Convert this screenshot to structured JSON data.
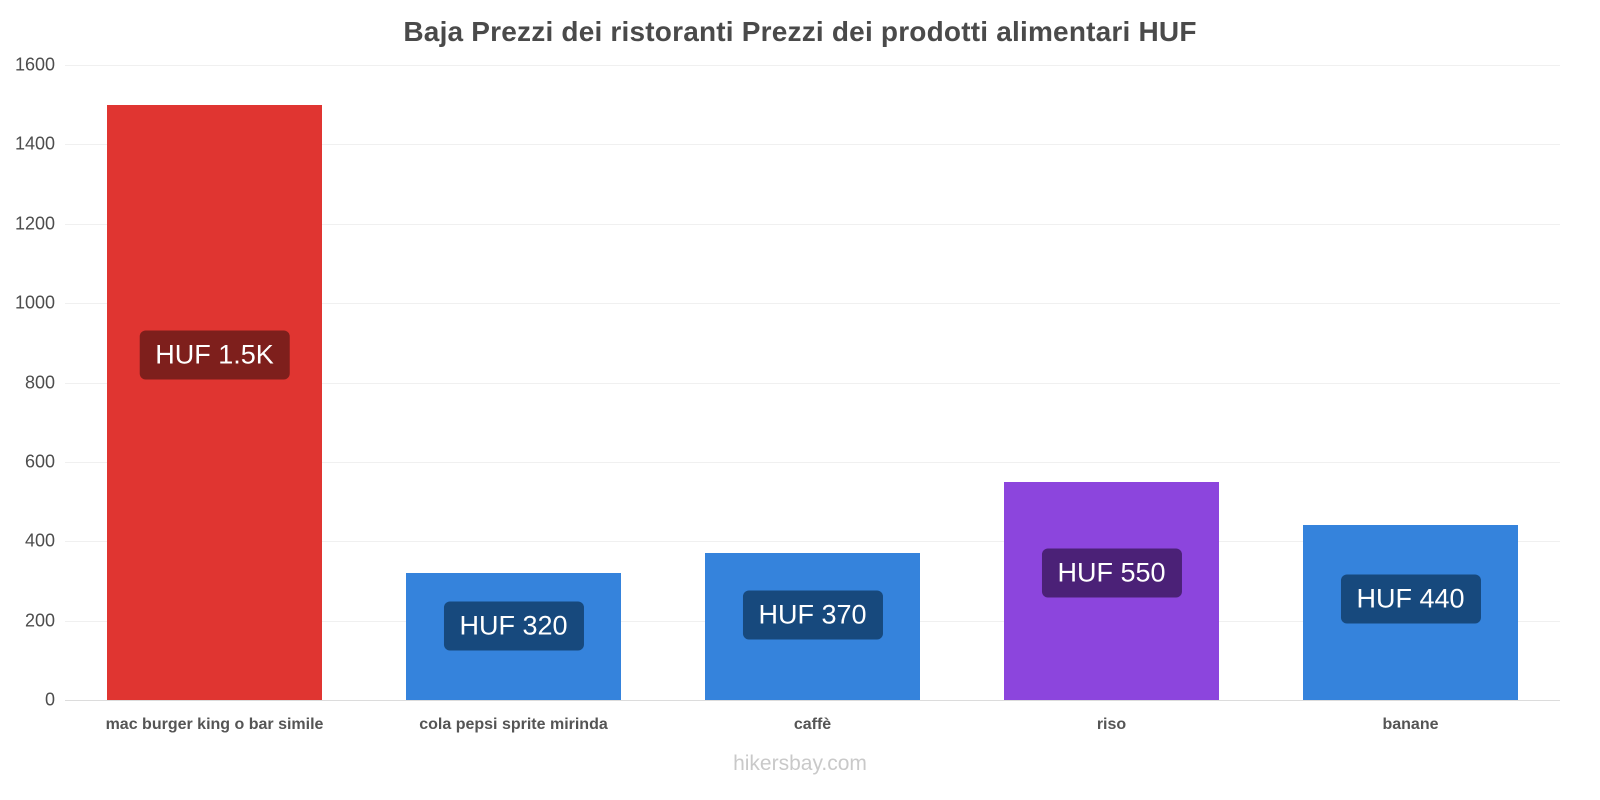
{
  "chart_data": {
    "type": "bar",
    "title": "Baja Prezzi dei ristoranti Prezzi dei prodotti alimentari HUF",
    "categories": [
      "mac burger king o bar simile",
      "cola pepsi sprite mirinda",
      "caffè",
      "riso",
      "banane"
    ],
    "values": [
      1500,
      320,
      370,
      550,
      440
    ],
    "value_labels": [
      "HUF 1.5K",
      "HUF 320",
      "HUF 370",
      "HUF 550",
      "HUF 440"
    ],
    "bar_colors": [
      "#e03531",
      "#3583dc",
      "#3583dc",
      "#8c45dd",
      "#3583dc"
    ],
    "badge_colors": [
      "#7e1f1c",
      "#17497d",
      "#17497d",
      "#4b2177",
      "#17497d"
    ],
    "ylim": [
      0,
      1600
    ],
    "yticks": [
      0,
      200,
      400,
      600,
      800,
      1000,
      1200,
      1400,
      1600
    ],
    "xlabel": "",
    "ylabel": "",
    "grid": "horizontal-faint",
    "legend": "none",
    "footer": "hikersbay.com"
  }
}
